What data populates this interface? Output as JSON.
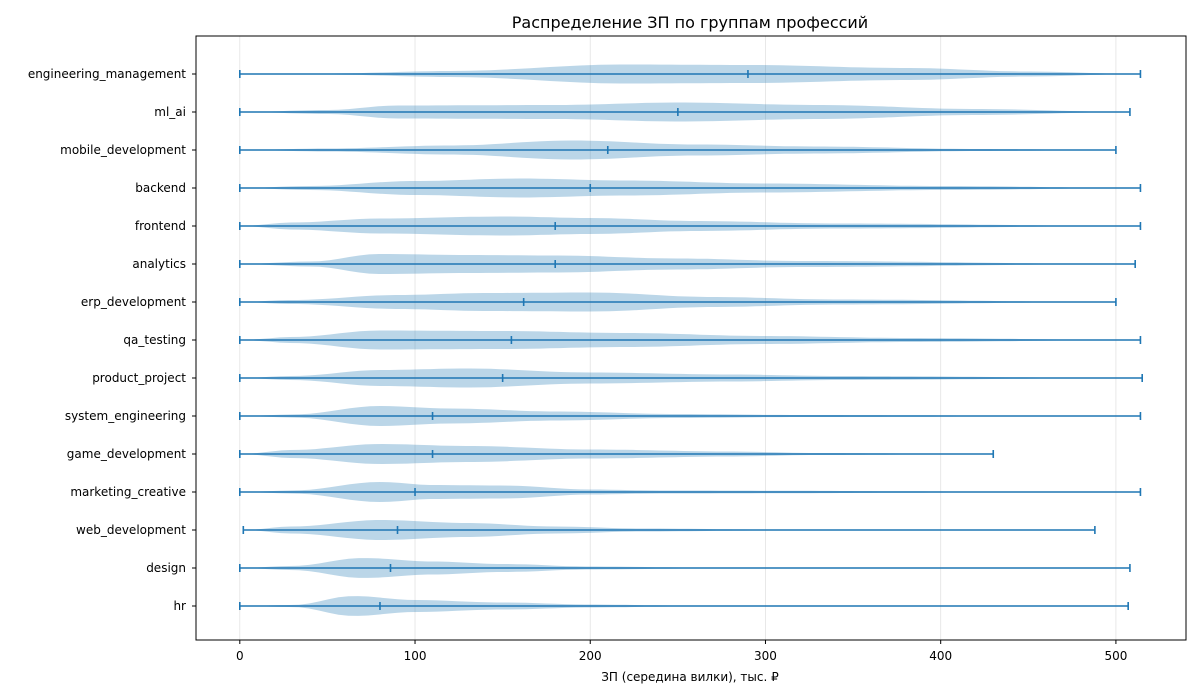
{
  "chart_data": {
    "type": "violin",
    "title": "Распределение ЗП по группам профессий",
    "xlabel": "ЗП (середина вилки), тыс. ₽",
    "ylabel": "",
    "xlim": [
      -25,
      540
    ],
    "xticks": [
      0,
      100,
      200,
      300,
      400,
      500
    ],
    "grid": "x",
    "colors": {
      "body": "#1f77b4",
      "line": "#1f77b4"
    },
    "categories": [
      "engineering_management",
      "ml_ai",
      "mobile_development",
      "backend",
      "frontend",
      "analytics",
      "erp_development",
      "qa_testing",
      "product_project",
      "system_engineering",
      "game_development",
      "marketing_creative",
      "web_development",
      "design",
      "hr"
    ],
    "series": [
      {
        "category": "engineering_management",
        "min": 0,
        "max": 514,
        "median": 290,
        "peaks": [
          [
            50,
            0.05
          ],
          [
            120,
            0.3
          ],
          [
            220,
            0.95
          ],
          [
            290,
            0.9
          ],
          [
            380,
            0.6
          ],
          [
            450,
            0.25
          ],
          [
            514,
            0.08
          ]
        ]
      },
      {
        "category": "ml_ai",
        "min": 0,
        "max": 508,
        "median": 250,
        "peaks": [
          [
            50,
            0.2
          ],
          [
            90,
            0.65
          ],
          [
            180,
            0.7
          ],
          [
            250,
            0.95
          ],
          [
            330,
            0.7
          ],
          [
            420,
            0.3
          ],
          [
            508,
            0.03
          ]
        ]
      },
      {
        "category": "mobile_development",
        "min": 0,
        "max": 500,
        "median": 210,
        "peaks": [
          [
            50,
            0.15
          ],
          [
            120,
            0.45
          ],
          [
            190,
            0.95
          ],
          [
            260,
            0.55
          ],
          [
            330,
            0.35
          ],
          [
            420,
            0.1
          ],
          [
            500,
            0.02
          ]
        ]
      },
      {
        "category": "backend",
        "min": 0,
        "max": 514,
        "median": 200,
        "peaks": [
          [
            40,
            0.2
          ],
          [
            100,
            0.7
          ],
          [
            160,
            0.95
          ],
          [
            220,
            0.75
          ],
          [
            300,
            0.45
          ],
          [
            400,
            0.2
          ],
          [
            514,
            0.02
          ]
        ]
      },
      {
        "category": "frontend",
        "min": 0,
        "max": 514,
        "median": 180,
        "peaks": [
          [
            30,
            0.35
          ],
          [
            80,
            0.75
          ],
          [
            150,
            0.95
          ],
          [
            200,
            0.8
          ],
          [
            260,
            0.5
          ],
          [
            340,
            0.25
          ],
          [
            514,
            0.02
          ]
        ]
      },
      {
        "category": "analytics",
        "min": 0,
        "max": 511,
        "median": 180,
        "peaks": [
          [
            40,
            0.25
          ],
          [
            80,
            1.0
          ],
          [
            130,
            0.9
          ],
          [
            180,
            0.85
          ],
          [
            250,
            0.55
          ],
          [
            320,
            0.3
          ],
          [
            511,
            0.02
          ]
        ]
      },
      {
        "category": "erp_development",
        "min": 0,
        "max": 500,
        "median": 162,
        "peaks": [
          [
            30,
            0.2
          ],
          [
            90,
            0.7
          ],
          [
            140,
            0.9
          ],
          [
            200,
            0.95
          ],
          [
            270,
            0.5
          ],
          [
            340,
            0.25
          ],
          [
            500,
            0.02
          ]
        ]
      },
      {
        "category": "qa_testing",
        "min": 0,
        "max": 514,
        "median": 155,
        "peaks": [
          [
            30,
            0.3
          ],
          [
            80,
            0.95
          ],
          [
            150,
            0.9
          ],
          [
            220,
            0.7
          ],
          [
            300,
            0.4
          ],
          [
            380,
            0.2
          ],
          [
            514,
            0.02
          ]
        ]
      },
      {
        "category": "product_project",
        "min": 0,
        "max": 515,
        "median": 150,
        "peaks": [
          [
            30,
            0.2
          ],
          [
            80,
            0.8
          ],
          [
            130,
            0.95
          ],
          [
            200,
            0.55
          ],
          [
            280,
            0.35
          ],
          [
            340,
            0.2
          ],
          [
            515,
            0.02
          ]
        ]
      },
      {
        "category": "system_engineering",
        "min": 0,
        "max": 514,
        "median": 110,
        "peaks": [
          [
            30,
            0.15
          ],
          [
            80,
            1.0
          ],
          [
            120,
            0.75
          ],
          [
            180,
            0.45
          ],
          [
            250,
            0.2
          ],
          [
            320,
            0.1
          ],
          [
            514,
            0.02
          ]
        ]
      },
      {
        "category": "game_development",
        "min": 0,
        "max": 430,
        "median": 110,
        "peaks": [
          [
            30,
            0.4
          ],
          [
            80,
            1.0
          ],
          [
            130,
            0.8
          ],
          [
            200,
            0.45
          ],
          [
            280,
            0.25
          ],
          [
            330,
            0.1
          ],
          [
            430,
            0.02
          ]
        ]
      },
      {
        "category": "marketing_creative",
        "min": 0,
        "max": 514,
        "median": 100,
        "peaks": [
          [
            30,
            0.15
          ],
          [
            80,
            1.0
          ],
          [
            110,
            0.7
          ],
          [
            150,
            0.65
          ],
          [
            200,
            0.25
          ],
          [
            240,
            0.15
          ],
          [
            514,
            0.02
          ]
        ]
      },
      {
        "category": "web_development",
        "min": 2,
        "max": 488,
        "median": 90,
        "peaks": [
          [
            30,
            0.35
          ],
          [
            80,
            1.0
          ],
          [
            130,
            0.7
          ],
          [
            180,
            0.35
          ],
          [
            230,
            0.15
          ],
          [
            300,
            0.05
          ],
          [
            488,
            0.02
          ]
        ]
      },
      {
        "category": "design",
        "min": 0,
        "max": 508,
        "median": 86,
        "peaks": [
          [
            30,
            0.2
          ],
          [
            70,
            1.0
          ],
          [
            110,
            0.65
          ],
          [
            150,
            0.4
          ],
          [
            200,
            0.15
          ],
          [
            260,
            0.05
          ],
          [
            508,
            0.02
          ]
        ]
      },
      {
        "category": "hr",
        "min": 0,
        "max": 507,
        "median": 80,
        "peaks": [
          [
            30,
            0.1
          ],
          [
            65,
            1.0
          ],
          [
            100,
            0.6
          ],
          [
            150,
            0.35
          ],
          [
            200,
            0.15
          ],
          [
            250,
            0.05
          ],
          [
            507,
            0.02
          ]
        ]
      }
    ]
  }
}
